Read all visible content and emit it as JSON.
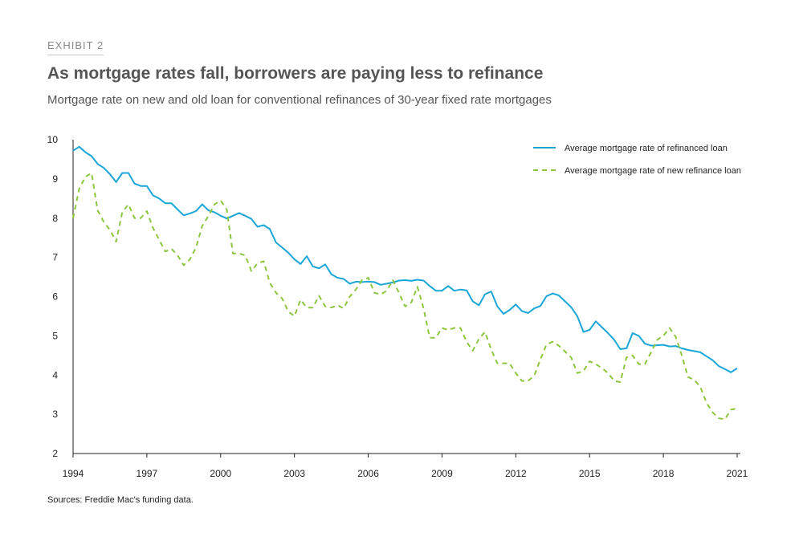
{
  "header": {
    "exhibit": "EXHIBIT 2",
    "title": "As mortgage rates fall, borrowers are paying less to refinance",
    "subtitle": "Mortgage rate on new and old loan for conventional refinances of 30-year fixed rate mortgages"
  },
  "footer": {
    "source": "Sources: Freddie Mac's funding data."
  },
  "colors": {
    "series_old": "#1aa7d8",
    "series_new": "#8cc63f",
    "axis": "#222222"
  },
  "chart_data": {
    "type": "line",
    "title": "As mortgage rates fall, borrowers are paying less to refinance",
    "xlabel": "",
    "ylabel": "",
    "xlim": [
      1994,
      2021
    ],
    "ylim": [
      2,
      10
    ],
    "x_ticks": [
      1994,
      1997,
      2000,
      2003,
      2006,
      2009,
      2012,
      2015,
      2018,
      2021
    ],
    "y_ticks": [
      2,
      3,
      4,
      5,
      6,
      7,
      8,
      9,
      10
    ],
    "legend_position": "top-right",
    "series": [
      {
        "name": "Average mortgage rate of refinanced loan",
        "style": "solid",
        "x": [
          1994.0,
          1994.25,
          1994.5,
          1994.75,
          1995.0,
          1995.25,
          1995.5,
          1995.75,
          1996.0,
          1996.25,
          1996.5,
          1996.75,
          1997.0,
          1997.25,
          1997.5,
          1997.75,
          1998.0,
          1998.25,
          1998.5,
          1998.75,
          1999.0,
          1999.25,
          1999.5,
          1999.75,
          2000.0,
          2000.25,
          2000.5,
          2000.75,
          2001.0,
          2001.25,
          2001.5,
          2001.75,
          2002.0,
          2002.25,
          2002.5,
          2002.75,
          2003.0,
          2003.25,
          2003.5,
          2003.75,
          2004.0,
          2004.25,
          2004.5,
          2004.75,
          2005.0,
          2005.25,
          2005.5,
          2005.75,
          2006.0,
          2006.25,
          2006.5,
          2006.75,
          2007.0,
          2007.25,
          2007.5,
          2007.75,
          2008.0,
          2008.25,
          2008.5,
          2008.75,
          2009.0,
          2009.25,
          2009.5,
          2009.75,
          2010.0,
          2010.25,
          2010.5,
          2010.75,
          2011.0,
          2011.25,
          2011.5,
          2011.75,
          2012.0,
          2012.25,
          2012.5,
          2012.75,
          2013.0,
          2013.25,
          2013.5,
          2013.75,
          2014.0,
          2014.25,
          2014.5,
          2014.75,
          2015.0,
          2015.25,
          2015.5,
          2015.75,
          2016.0,
          2016.25,
          2016.5,
          2016.75,
          2017.0,
          2017.25,
          2017.5,
          2017.75,
          2018.0,
          2018.25,
          2018.5,
          2018.75,
          2019.0,
          2019.25,
          2019.5,
          2019.75,
          2020.0,
          2020.25,
          2020.5,
          2020.75,
          2021.0
        ],
        "values": [
          9.72,
          9.82,
          9.68,
          9.58,
          9.38,
          9.28,
          9.12,
          8.92,
          9.15,
          9.15,
          8.88,
          8.82,
          8.82,
          8.58,
          8.5,
          8.38,
          8.38,
          8.22,
          8.07,
          8.12,
          8.18,
          8.35,
          8.2,
          8.15,
          8.06,
          7.99,
          8.06,
          8.13,
          8.06,
          7.98,
          7.78,
          7.82,
          7.72,
          7.38,
          7.25,
          7.12,
          6.95,
          6.83,
          7.03,
          6.77,
          6.72,
          6.82,
          6.57,
          6.48,
          6.45,
          6.33,
          6.38,
          6.37,
          6.38,
          6.37,
          6.3,
          6.33,
          6.36,
          6.41,
          6.42,
          6.4,
          6.43,
          6.41,
          6.27,
          6.15,
          6.15,
          6.27,
          6.15,
          6.18,
          6.16,
          5.88,
          5.78,
          6.06,
          6.13,
          5.75,
          5.56,
          5.66,
          5.8,
          5.63,
          5.58,
          5.7,
          5.76,
          6.01,
          6.08,
          6.03,
          5.88,
          5.73,
          5.5,
          5.1,
          5.15,
          5.37,
          5.22,
          5.07,
          4.9,
          4.66,
          4.68,
          5.07,
          5.0,
          4.8,
          4.75,
          4.76,
          4.77,
          4.73,
          4.74,
          4.68,
          4.64,
          4.61,
          4.58,
          4.48,
          4.38,
          4.23,
          4.15,
          4.07,
          4.17
        ]
      },
      {
        "name": "Average mortgage rate of new refinance loan",
        "style": "dashed",
        "x": [
          1994.0,
          1994.25,
          1994.5,
          1994.75,
          1995.0,
          1995.25,
          1995.5,
          1995.75,
          1996.0,
          1996.25,
          1996.5,
          1996.75,
          1997.0,
          1997.25,
          1997.5,
          1997.75,
          1998.0,
          1998.25,
          1998.5,
          1998.75,
          1999.0,
          1999.25,
          1999.5,
          1999.75,
          2000.0,
          2000.25,
          2000.5,
          2000.75,
          2001.0,
          2001.25,
          2001.5,
          2001.75,
          2002.0,
          2002.25,
          2002.5,
          2002.75,
          2003.0,
          2003.25,
          2003.5,
          2003.75,
          2004.0,
          2004.25,
          2004.5,
          2004.75,
          2005.0,
          2005.25,
          2005.5,
          2005.75,
          2006.0,
          2006.25,
          2006.5,
          2006.75,
          2007.0,
          2007.25,
          2007.5,
          2007.75,
          2008.0,
          2008.25,
          2008.5,
          2008.75,
          2009.0,
          2009.25,
          2009.5,
          2009.75,
          2010.0,
          2010.25,
          2010.5,
          2010.75,
          2011.0,
          2011.25,
          2011.5,
          2011.75,
          2012.0,
          2012.25,
          2012.5,
          2012.75,
          2013.0,
          2013.25,
          2013.5,
          2013.75,
          2014.0,
          2014.25,
          2014.5,
          2014.75,
          2015.0,
          2015.25,
          2015.5,
          2015.75,
          2016.0,
          2016.25,
          2016.5,
          2016.75,
          2017.0,
          2017.25,
          2017.5,
          2017.75,
          2018.0,
          2018.25,
          2018.5,
          2018.75,
          2019.0,
          2019.25,
          2019.5,
          2019.75,
          2020.0,
          2020.25,
          2020.5,
          2020.75,
          2021.0
        ],
        "values": [
          8.0,
          8.75,
          9.05,
          9.15,
          8.2,
          7.9,
          7.7,
          7.4,
          8.15,
          8.35,
          8.0,
          8.0,
          8.18,
          7.75,
          7.45,
          7.15,
          7.22,
          7.05,
          6.8,
          6.95,
          7.25,
          7.8,
          8.05,
          8.35,
          8.45,
          8.22,
          7.1,
          7.1,
          7.05,
          6.65,
          6.85,
          6.9,
          6.35,
          6.1,
          5.95,
          5.62,
          5.5,
          5.92,
          5.72,
          5.72,
          6.02,
          5.75,
          5.72,
          5.78,
          5.7,
          6.0,
          6.18,
          6.42,
          6.48,
          6.1,
          6.05,
          6.15,
          6.42,
          6.1,
          5.75,
          5.85,
          6.25,
          5.7,
          4.95,
          4.95,
          5.2,
          5.15,
          5.2,
          5.2,
          4.85,
          4.62,
          4.92,
          5.1,
          4.65,
          4.3,
          4.3,
          4.3,
          4.05,
          3.85,
          3.85,
          3.98,
          4.4,
          4.78,
          4.85,
          4.75,
          4.6,
          4.45,
          4.05,
          4.1,
          4.35,
          4.28,
          4.18,
          4.05,
          3.85,
          3.82,
          4.45,
          4.5,
          4.28,
          4.28,
          4.58,
          4.9,
          5.0,
          5.2,
          4.98,
          4.5,
          3.95,
          3.88,
          3.7,
          3.3,
          3.05,
          2.9,
          2.87,
          3.12,
          3.15
        ]
      }
    ]
  }
}
